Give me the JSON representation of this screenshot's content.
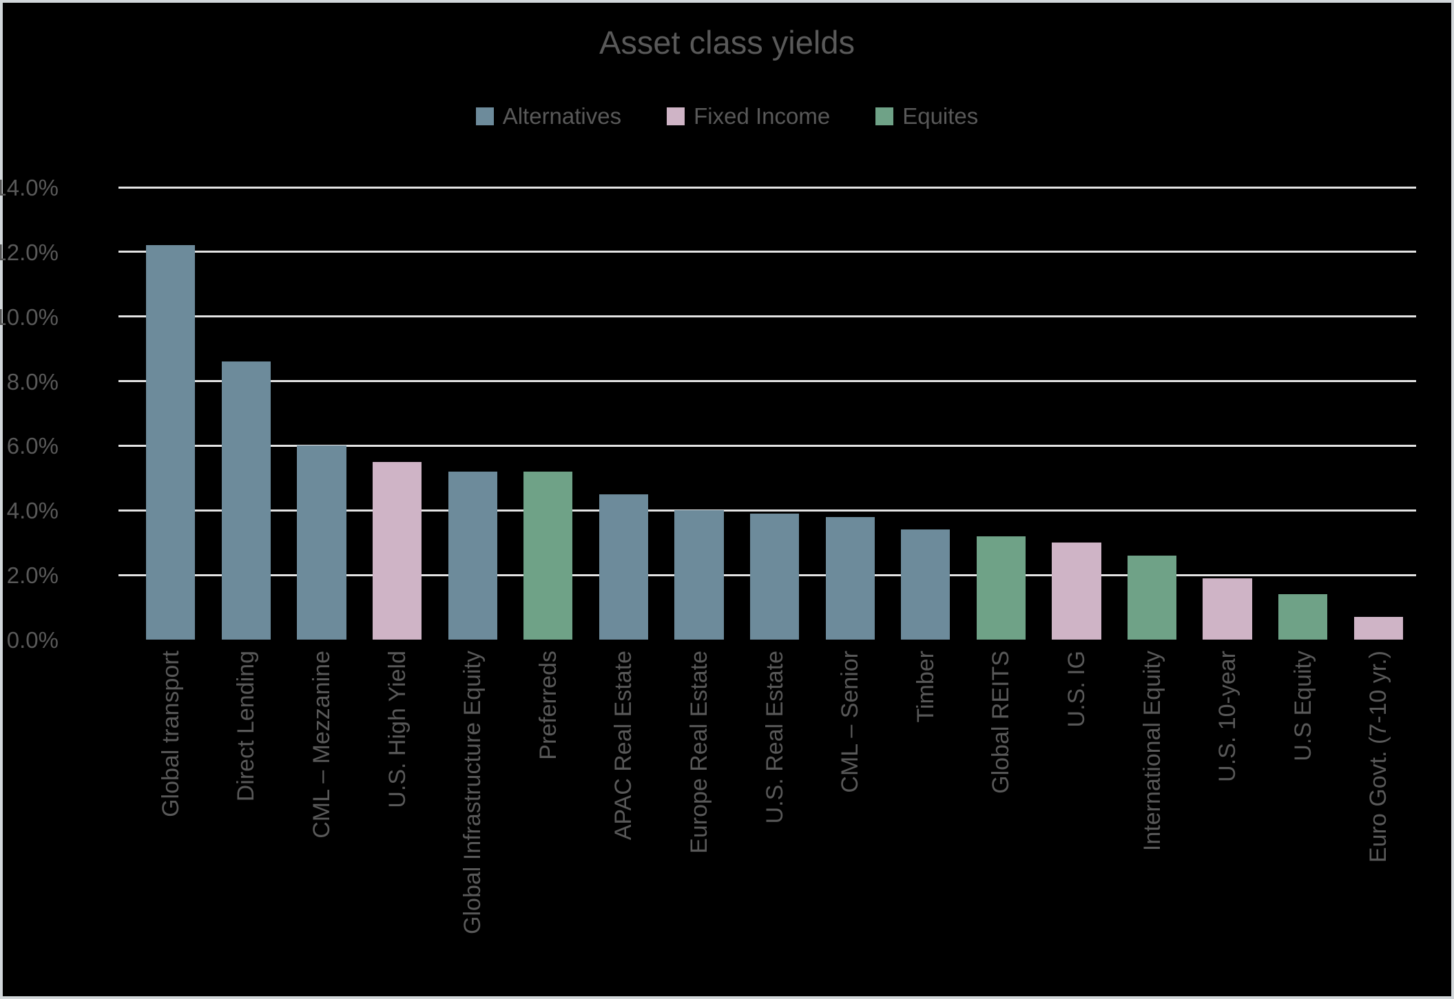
{
  "title": "Asset class yields",
  "colors": {
    "background": "#000000",
    "border": "#d2d7da",
    "gridline": "#e4e4e4",
    "text": "#595959",
    "alternatives": "#6d8b9b",
    "fixed_income": "#cfb4c6",
    "equities": "#6fa287"
  },
  "legend": [
    {
      "label": "Alternatives",
      "series": "alternatives"
    },
    {
      "label": "Fixed Income",
      "series": "fixed_income"
    },
    {
      "label": "Equites",
      "series": "equities"
    }
  ],
  "chart_data": {
    "type": "bar",
    "title": "Asset class yields",
    "xlabel": "",
    "ylabel": "",
    "ylim": [
      0,
      14
    ],
    "ytick_step": 2,
    "ytick_labels": [
      "0.0%",
      "2.0%",
      "4.0%",
      "6.0%",
      "8.0%",
      "10.0%",
      "12.0%",
      "14.0%"
    ],
    "grid": true,
    "legend_position": "top",
    "series_colors": {
      "alternatives": "#6d8b9b",
      "fixed_income": "#cfb4c6",
      "equities": "#6fa287"
    },
    "points": [
      {
        "category": "Global transport",
        "value_pct": 12.2,
        "series": "alternatives"
      },
      {
        "category": "Direct Lending",
        "value_pct": 8.6,
        "series": "alternatives"
      },
      {
        "category": "CML – Mezzanine",
        "value_pct": 6.0,
        "series": "alternatives"
      },
      {
        "category": "U.S. High Yield",
        "value_pct": 5.5,
        "series": "fixed_income"
      },
      {
        "category": "Global Infrastructure Equity",
        "value_pct": 5.2,
        "series": "alternatives"
      },
      {
        "category": "Preferreds",
        "value_pct": 5.2,
        "series": "equities"
      },
      {
        "category": "APAC Real Estate",
        "value_pct": 4.5,
        "series": "alternatives"
      },
      {
        "category": "Europe Real Estate",
        "value_pct": 4.0,
        "series": "alternatives"
      },
      {
        "category": "U.S. Real Estate",
        "value_pct": 3.9,
        "series": "alternatives"
      },
      {
        "category": "CML – Senior",
        "value_pct": 3.8,
        "series": "alternatives"
      },
      {
        "category": "Timber",
        "value_pct": 3.4,
        "series": "alternatives"
      },
      {
        "category": "Global REITS",
        "value_pct": 3.2,
        "series": "equities"
      },
      {
        "category": "U.S. IG",
        "value_pct": 3.0,
        "series": "fixed_income"
      },
      {
        "category": "International Equity",
        "value_pct": 2.6,
        "series": "equities"
      },
      {
        "category": "U.S. 10-year",
        "value_pct": 1.9,
        "series": "fixed_income"
      },
      {
        "category": "U.S Equity",
        "value_pct": 1.4,
        "series": "equities"
      },
      {
        "category": "Euro Govt. (7-10 yr.)",
        "value_pct": 0.7,
        "series": "fixed_income"
      }
    ]
  }
}
